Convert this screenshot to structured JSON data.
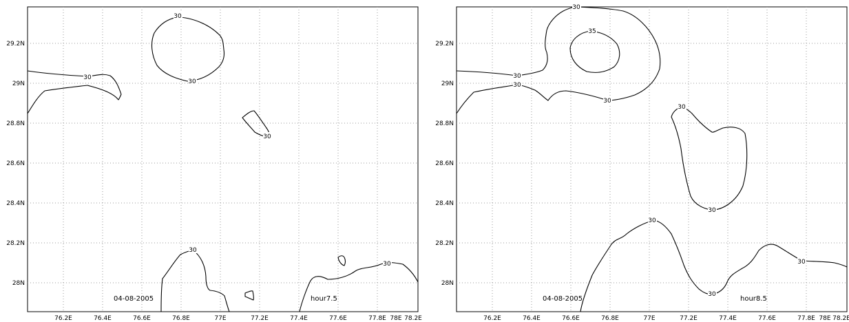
{
  "panels": [
    {
      "date_label": "04-08-2005",
      "hour_label": "hour7.5",
      "x_ticks": [
        "76.2E",
        "76.4E",
        "76.6E",
        "76.8E",
        "77E",
        "77.2E",
        "77.4E",
        "77.6E",
        "77.8E",
        "78E",
        "78.2E"
      ],
      "y_ticks": [
        "29.2N",
        "29N",
        "28.8N",
        "28.6N",
        "28.4N",
        "28.2N",
        "28N"
      ],
      "contour_labels": [
        "30",
        "30",
        "30",
        "30",
        "30",
        "30"
      ]
    },
    {
      "date_label": "04-08-2005",
      "hour_label": "hour8.5",
      "x_ticks": [
        "76.2E",
        "76.4E",
        "76.6E",
        "76.8E",
        "77E",
        "77.2E",
        "77.4E",
        "77.6E",
        "77.8E",
        "78E",
        "78.2E"
      ],
      "y_ticks": [
        "29.2N",
        "29N",
        "28.8N",
        "28.6N",
        "28.4N",
        "28.2N",
        "28N"
      ],
      "contour_labels": [
        "30",
        "35",
        "30",
        "30",
        "30",
        "30",
        "30",
        "30",
        "30",
        "30"
      ]
    }
  ]
}
